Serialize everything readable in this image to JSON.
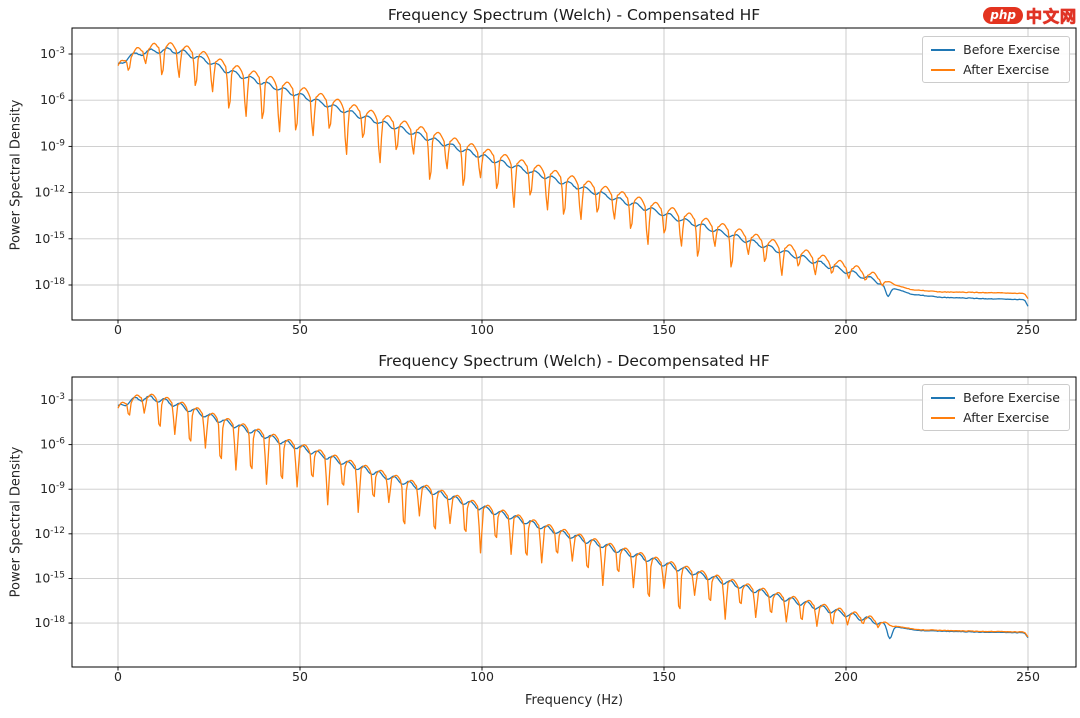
{
  "watermark": {
    "prefix": "php",
    "suffix": "中文网",
    "badge_color": "#e3331f"
  },
  "chart_data": [
    {
      "type": "line",
      "title": "Frequency Spectrum (Welch) - Compensated HF",
      "xlabel": "",
      "ylabel": "Power Spectral Density",
      "y_scale": "log",
      "grid": true,
      "x_ticks": [
        0,
        50,
        100,
        150,
        200,
        250
      ],
      "y_tick_exponents": [
        -3,
        -6,
        -9,
        -12,
        -15,
        -18
      ],
      "x_range_hz": [
        0,
        250
      ],
      "legend": {
        "position": "upper right",
        "entries": [
          {
            "label": "Before Exercise",
            "color": "#1f77b4"
          },
          {
            "label": "After Exercise",
            "color": "#ff7f0e"
          }
        ]
      },
      "series": [
        {
          "name": "Before Exercise",
          "color": "#1f77b4",
          "ridge_log10": [
            [
              0,
              -3.75
            ],
            [
              3,
              -3.2
            ],
            [
              6,
              -2.95
            ],
            [
              10,
              -2.8
            ],
            [
              14,
              -2.75
            ],
            [
              18,
              -2.9
            ],
            [
              25,
              -3.5
            ],
            [
              30,
              -4.1
            ],
            [
              40,
              -4.9
            ],
            [
              50,
              -5.7
            ],
            [
              65,
              -6.9
            ],
            [
              80,
              -8.05
            ],
            [
              100,
              -9.65
            ],
            [
              120,
              -11.15
            ],
            [
              140,
              -12.65
            ],
            [
              160,
              -14.15
            ],
            [
              180,
              -15.65
            ],
            [
              195,
              -16.75
            ],
            [
              205,
              -17.45
            ],
            [
              212,
              -18.1
            ],
            [
              218,
              -18.6
            ],
            [
              226,
              -18.8
            ],
            [
              240,
              -18.9
            ],
            [
              249,
              -18.95
            ],
            [
              250,
              -19.4
            ]
          ],
          "oscillation": {
            "style": "ripple",
            "amplitude": 0.15,
            "period_hz": 4.6,
            "phase": 2.0
          },
          "notch": {
            "x_hz": 211.5,
            "depth_decades": 0.75,
            "width_hz": 0.9
          },
          "noise_floor_start_hz": 215
        },
        {
          "name": "After Exercise",
          "color": "#ff7f0e",
          "ridge_log10": [
            [
              0,
              -3.95
            ],
            [
              3,
              -3.15
            ],
            [
              6,
              -2.8
            ],
            [
              10,
              -2.6
            ],
            [
              14,
              -2.55
            ],
            [
              18,
              -2.7
            ],
            [
              25,
              -3.25
            ],
            [
              30,
              -3.85
            ],
            [
              40,
              -4.6
            ],
            [
              50,
              -5.4
            ],
            [
              65,
              -6.6
            ],
            [
              80,
              -7.75
            ],
            [
              100,
              -9.35
            ],
            [
              120,
              -10.85
            ],
            [
              140,
              -12.35
            ],
            [
              160,
              -13.85
            ],
            [
              180,
              -15.35
            ],
            [
              195,
              -16.45
            ],
            [
              205,
              -17.2
            ],
            [
              212,
              -17.9
            ],
            [
              218,
              -18.3
            ],
            [
              226,
              -18.45
            ],
            [
              240,
              -18.5
            ],
            [
              249,
              -18.55
            ],
            [
              250,
              -18.9
            ]
          ],
          "oscillation": {
            "style": "spiky-dips",
            "up_amplitude": 0.3,
            "period_hz": 4.6,
            "phase": 0.7,
            "dip_power": 4,
            "depth_jitter": [
              0.65,
              1.35
            ],
            "dip_depth_profile": [
              [
                0,
                0
              ],
              [
                3,
                0.8
              ],
              [
                10,
                1.5
              ],
              [
                25,
                2.0
              ],
              [
                45,
                2.4
              ],
              [
                150,
                2.4
              ],
              [
                185,
                1.4
              ],
              [
                200,
                0.7
              ],
              [
                210,
                0.3
              ],
              [
                214,
                0
              ]
            ]
          },
          "noise_floor_start_hz": 215
        }
      ]
    },
    {
      "type": "line",
      "title": "Frequency Spectrum (Welch) - Decompensated HF",
      "xlabel": "Frequency (Hz)",
      "ylabel": "Power Spectral Density",
      "y_scale": "log",
      "grid": true,
      "x_ticks": [
        0,
        50,
        100,
        150,
        200,
        250
      ],
      "y_tick_exponents": [
        -3,
        -6,
        -9,
        -12,
        -15,
        -18
      ],
      "x_range_hz": [
        0,
        250
      ],
      "legend": {
        "position": "upper right",
        "entries": [
          {
            "label": "Before Exercise",
            "color": "#1f77b4"
          },
          {
            "label": "After Exercise",
            "color": "#ff7f0e"
          }
        ]
      },
      "series": [
        {
          "name": "Before Exercise",
          "color": "#1f77b4",
          "ridge_log10": [
            [
              0,
              -3.55
            ],
            [
              3,
              -3.1
            ],
            [
              7,
              -2.85
            ],
            [
              11,
              -2.95
            ],
            [
              16,
              -3.3
            ],
            [
              25,
              -4.1
            ],
            [
              35,
              -4.95
            ],
            [
              50,
              -6.2
            ],
            [
              65,
              -7.45
            ],
            [
              80,
              -8.65
            ],
            [
              100,
              -10.25
            ],
            [
              120,
              -11.8
            ],
            [
              140,
              -13.3
            ],
            [
              160,
              -14.75
            ],
            [
              180,
              -16.15
            ],
            [
              195,
              -17.1
            ],
            [
              205,
              -17.7
            ],
            [
              212,
              -18.2
            ],
            [
              220,
              -18.5
            ],
            [
              235,
              -18.6
            ],
            [
              249,
              -18.65
            ],
            [
              250,
              -19.0
            ]
          ],
          "oscillation": {
            "style": "ripple",
            "amplitude": 0.18,
            "period_hz": 4.2,
            "phase": 1.1
          },
          "notch": {
            "x_hz": 212,
            "depth_decades": 0.8,
            "width_hz": 0.9
          },
          "noise_floor_start_hz": 215
        },
        {
          "name": "After Exercise",
          "color": "#ff7f0e",
          "ridge_log10": [
            [
              0,
              -3.6
            ],
            [
              3,
              -3.05
            ],
            [
              7,
              -2.8
            ],
            [
              11,
              -2.9
            ],
            [
              16,
              -3.25
            ],
            [
              25,
              -4.05
            ],
            [
              35,
              -4.9
            ],
            [
              50,
              -6.15
            ],
            [
              65,
              -7.4
            ],
            [
              80,
              -8.6
            ],
            [
              100,
              -10.2
            ],
            [
              120,
              -11.75
            ],
            [
              140,
              -13.25
            ],
            [
              160,
              -14.7
            ],
            [
              180,
              -16.1
            ],
            [
              195,
              -17.05
            ],
            [
              205,
              -17.65
            ],
            [
              212,
              -18.15
            ],
            [
              220,
              -18.45
            ],
            [
              235,
              -18.55
            ],
            [
              249,
              -18.6
            ],
            [
              250,
              -18.95
            ]
          ],
          "oscillation": {
            "style": "spiky-dips",
            "up_amplitude": 0.25,
            "period_hz": 4.2,
            "phase": 0.2,
            "dip_power": 4,
            "depth_jitter": [
              0.65,
              1.35
            ],
            "dip_depth_profile": [
              [
                0,
                0
              ],
              [
                3,
                0.9
              ],
              [
                8,
                1.6
              ],
              [
                20,
                2.1
              ],
              [
                40,
                2.5
              ],
              [
                150,
                2.5
              ],
              [
                185,
                1.5
              ],
              [
                200,
                0.8
              ],
              [
                210,
                0.3
              ],
              [
                214,
                0
              ]
            ]
          },
          "noise_floor_start_hz": 215
        }
      ]
    }
  ]
}
